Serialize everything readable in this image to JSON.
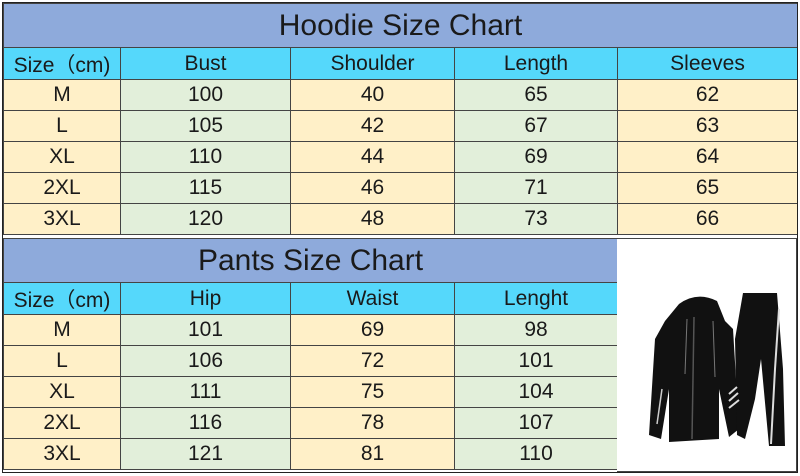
{
  "hoodie": {
    "title": "Hoodie Size Chart",
    "headers": [
      "Size（cm)",
      "Bust",
      "Shoulder",
      "Length",
      "Sleeves"
    ],
    "rows": [
      [
        "M",
        "100",
        "40",
        "65",
        "62"
      ],
      [
        "L",
        "105",
        "42",
        "67",
        "63"
      ],
      [
        "XL",
        "110",
        "44",
        "69",
        "64"
      ],
      [
        "2XL",
        "115",
        "46",
        "71",
        "65"
      ],
      [
        "3XL",
        "120",
        "48",
        "73",
        "66"
      ]
    ]
  },
  "pants": {
    "title": "Pants Size Chart",
    "headers": [
      "Size（cm)",
      "Hip",
      "Waist",
      "Lenght"
    ],
    "rows": [
      [
        "M",
        "101",
        "69",
        "98"
      ],
      [
        "L",
        "106",
        "72",
        "101"
      ],
      [
        "XL",
        "111",
        "75",
        "104"
      ],
      [
        "2XL",
        "116",
        "78",
        "107"
      ],
      [
        "3XL",
        "121",
        "81",
        "110"
      ]
    ]
  },
  "colors": {
    "title_bg": "#8eaadb",
    "header_bg": "#55d8fb",
    "yellow_cell": "#fff0c8",
    "green_cell": "#e2efda"
  },
  "product_image": {
    "icon": "black-tracksuit-hoodie-and-pants"
  }
}
